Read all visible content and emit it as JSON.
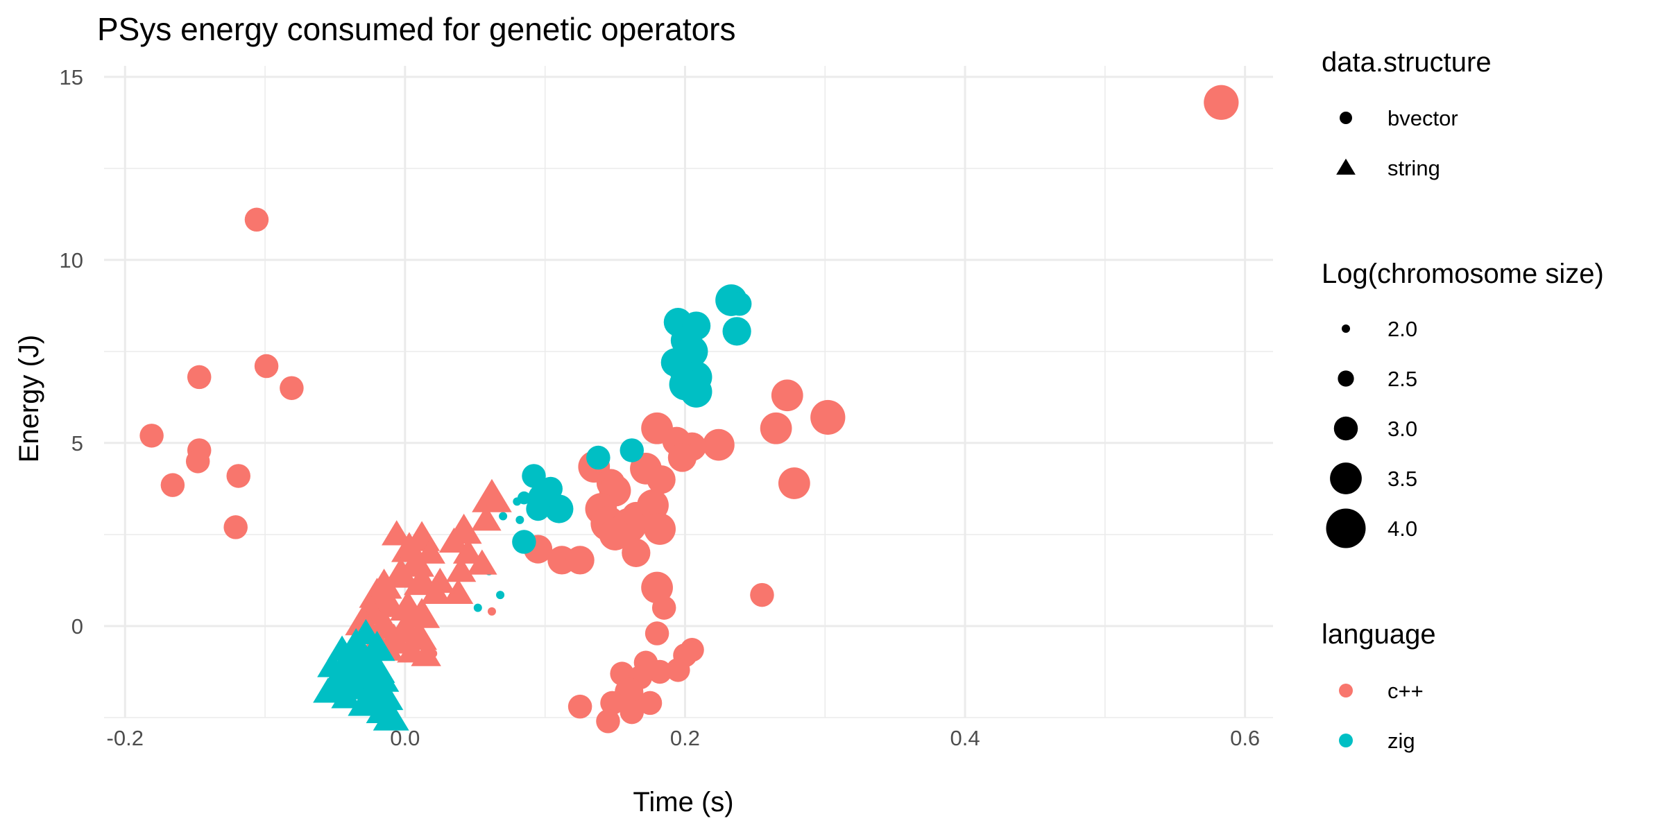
{
  "chart_data": {
    "type": "scatter",
    "title": "PSys energy consumed for genetic operators",
    "xlabel": "Time (s)",
    "ylabel": "Energy (J)",
    "xlim": [
      -0.215,
      0.62
    ],
    "ylim": [
      -2.5,
      15.3
    ],
    "x_ticks": [
      -0.2,
      0.0,
      0.2,
      0.4,
      0.6
    ],
    "x_tick_labels": [
      "-0.2",
      "0.0",
      "0.2",
      "0.4",
      "0.6"
    ],
    "y_ticks": [
      0,
      5,
      10,
      15
    ],
    "y_tick_labels": [
      "0",
      "5",
      "10",
      "15"
    ],
    "colors": {
      "c++": "#F8766D",
      "zig": "#00BFC4"
    },
    "legends": {
      "shape": {
        "title": "data.structure",
        "items": [
          {
            "label": "bvector",
            "shape": "circle"
          },
          {
            "label": "string",
            "shape": "triangle"
          }
        ]
      },
      "size": {
        "title": "Log(chromosome size)",
        "items": [
          {
            "label": "2.0",
            "value": 2.0
          },
          {
            "label": "2.5",
            "value": 2.5
          },
          {
            "label": "3.0",
            "value": 3.0
          },
          {
            "label": "3.5",
            "value": 3.5
          },
          {
            "label": "4.0",
            "value": 4.0
          }
        ]
      },
      "color": {
        "title": "language",
        "items": [
          {
            "label": "c++",
            "key": "c++"
          },
          {
            "label": "zig",
            "key": "zig"
          }
        ]
      }
    },
    "series": [
      {
        "language": "c++",
        "data_structure": "bvector",
        "points": [
          [
            0.583,
            14.3,
            3.7
          ],
          [
            -0.106,
            11.1,
            3.0
          ],
          [
            -0.099,
            7.1,
            3.0
          ],
          [
            -0.147,
            6.8,
            3.0
          ],
          [
            -0.081,
            6.5,
            3.0
          ],
          [
            -0.181,
            5.2,
            3.0
          ],
          [
            -0.147,
            4.8,
            3.0
          ],
          [
            -0.148,
            4.5,
            3.0
          ],
          [
            -0.166,
            3.85,
            3.0
          ],
          [
            -0.119,
            4.1,
            3.0
          ],
          [
            -0.121,
            2.7,
            3.0
          ],
          [
            0.302,
            5.7,
            3.7
          ],
          [
            0.273,
            6.3,
            3.5
          ],
          [
            0.265,
            5.4,
            3.5
          ],
          [
            0.278,
            3.9,
            3.5
          ],
          [
            0.255,
            0.85,
            3.0
          ],
          [
            0.224,
            4.95,
            3.5
          ],
          [
            0.205,
            4.9,
            3.3
          ],
          [
            0.18,
            5.4,
            3.5
          ],
          [
            0.194,
            5.05,
            3.3
          ],
          [
            0.198,
            4.6,
            3.3
          ],
          [
            0.172,
            4.3,
            3.5
          ],
          [
            0.183,
            4.0,
            3.3
          ],
          [
            0.135,
            4.35,
            3.5
          ],
          [
            0.147,
            3.9,
            3.3
          ],
          [
            0.15,
            3.7,
            3.5
          ],
          [
            0.14,
            3.2,
            3.5
          ],
          [
            0.177,
            3.3,
            3.5
          ],
          [
            0.165,
            3.0,
            3.3
          ],
          [
            0.145,
            2.8,
            3.7
          ],
          [
            0.16,
            2.75,
            3.7
          ],
          [
            0.182,
            2.65,
            3.5
          ],
          [
            0.15,
            2.5,
            3.5
          ],
          [
            0.165,
            2.0,
            3.3
          ],
          [
            0.095,
            2.1,
            3.3
          ],
          [
            0.112,
            1.8,
            3.3
          ],
          [
            0.125,
            1.8,
            3.3
          ],
          [
            0.18,
            1.05,
            3.5
          ],
          [
            0.185,
            0.5,
            3.0
          ],
          [
            0.18,
            -0.2,
            3.0
          ],
          [
            0.205,
            -0.65,
            3.0
          ],
          [
            0.2,
            -0.8,
            3.0
          ],
          [
            0.172,
            -1.0,
            3.0
          ],
          [
            0.195,
            -1.2,
            3.0
          ],
          [
            0.155,
            -1.3,
            3.0
          ],
          [
            0.182,
            -1.25,
            3.0
          ],
          [
            0.168,
            -1.4,
            3.0
          ],
          [
            0.16,
            -1.8,
            3.3
          ],
          [
            0.175,
            -2.1,
            3.0
          ],
          [
            0.148,
            -2.1,
            3.0
          ],
          [
            0.125,
            -2.2,
            3.0
          ],
          [
            0.162,
            -2.35,
            3.0
          ],
          [
            0.145,
            -2.6,
            3.0
          ],
          [
            0.062,
            0.4,
            2.0
          ],
          [
            0.02,
            -0.75,
            2.0
          ],
          [
            0.015,
            -0.45,
            2.0
          ]
        ]
      },
      {
        "language": "zig",
        "data_structure": "bvector",
        "points": [
          [
            0.233,
            8.9,
            3.5
          ],
          [
            0.239,
            8.8,
            3.0
          ],
          [
            0.237,
            8.05,
            3.3
          ],
          [
            0.195,
            8.3,
            3.3
          ],
          [
            0.208,
            8.2,
            3.3
          ],
          [
            0.2,
            7.8,
            3.3
          ],
          [
            0.205,
            7.5,
            3.5
          ],
          [
            0.193,
            7.2,
            3.3
          ],
          [
            0.2,
            7.0,
            3.5
          ],
          [
            0.208,
            6.8,
            3.5
          ],
          [
            0.2,
            6.6,
            3.5
          ],
          [
            0.208,
            6.4,
            3.5
          ],
          [
            0.138,
            4.6,
            3.0
          ],
          [
            0.162,
            4.8,
            3.0
          ],
          [
            0.092,
            4.1,
            3.0
          ],
          [
            0.104,
            3.75,
            3.0
          ],
          [
            0.098,
            3.5,
            3.3
          ],
          [
            0.11,
            3.2,
            3.3
          ],
          [
            0.085,
            3.5,
            2.3
          ],
          [
            0.095,
            3.2,
            3.0
          ],
          [
            0.08,
            3.4,
            2.0
          ],
          [
            0.07,
            3.0,
            2.0
          ],
          [
            0.082,
            2.9,
            2.0
          ],
          [
            0.085,
            2.3,
            3.0
          ],
          [
            0.06,
            1.5,
            2.0
          ],
          [
            0.068,
            0.85,
            2.0
          ],
          [
            0.052,
            0.5,
            2.0
          ]
        ]
      },
      {
        "language": "c++",
        "data_structure": "string",
        "points": [
          [
            0.062,
            3.5,
            3.5
          ],
          [
            0.058,
            2.9,
            3.0
          ],
          [
            0.042,
            2.6,
            3.3
          ],
          [
            0.035,
            2.3,
            3.0
          ],
          [
            0.045,
            2.0,
            3.0
          ],
          [
            0.055,
            1.7,
            3.0
          ],
          [
            0.04,
            1.5,
            3.0
          ],
          [
            0.038,
            0.9,
            3.0
          ],
          [
            0.025,
            1.2,
            3.0
          ],
          [
            0.012,
            2.4,
            3.3
          ],
          [
            0.003,
            2.1,
            3.3
          ],
          [
            -0.006,
            2.5,
            3.0
          ],
          [
            0.018,
            2.0,
            3.0
          ],
          [
            0.008,
            1.7,
            3.3
          ],
          [
            -0.003,
            1.4,
            3.3
          ],
          [
            0.012,
            1.2,
            3.3
          ],
          [
            0.022,
            0.9,
            3.0
          ],
          [
            -0.015,
            1.1,
            3.3
          ],
          [
            -0.02,
            0.85,
            3.3
          ],
          [
            -0.012,
            0.6,
            3.3
          ],
          [
            0.002,
            0.5,
            3.3
          ],
          [
            0.012,
            0.3,
            3.3
          ],
          [
            -0.025,
            0.4,
            3.3
          ],
          [
            -0.03,
            0.1,
            3.3
          ],
          [
            -0.015,
            0.0,
            3.3
          ],
          [
            0.0,
            -0.1,
            3.3
          ],
          [
            0.01,
            -0.3,
            3.3
          ],
          [
            -0.028,
            -0.2,
            3.0
          ],
          [
            -0.02,
            -0.5,
            3.3
          ],
          [
            -0.008,
            -0.4,
            3.3
          ],
          [
            0.005,
            -0.7,
            3.0
          ],
          [
            0.015,
            -0.8,
            3.0
          ],
          [
            -0.012,
            -0.65,
            3.0
          ]
        ]
      },
      {
        "language": "zig",
        "data_structure": "string",
        "points": [
          [
            -0.028,
            -0.2,
            3.0
          ],
          [
            -0.035,
            -0.45,
            3.0
          ],
          [
            -0.045,
            -0.65,
            3.0
          ],
          [
            -0.04,
            -0.9,
            3.3
          ],
          [
            -0.052,
            -1.1,
            3.0
          ],
          [
            -0.032,
            -1.05,
            3.0
          ],
          [
            -0.02,
            -1.2,
            3.3
          ],
          [
            -0.045,
            -1.35,
            3.3
          ],
          [
            -0.03,
            -1.4,
            3.3
          ],
          [
            -0.015,
            -1.5,
            3.0
          ],
          [
            -0.05,
            -1.6,
            3.3
          ],
          [
            -0.038,
            -1.65,
            3.3
          ],
          [
            -0.022,
            -1.8,
            3.3
          ],
          [
            -0.055,
            -1.8,
            3.0
          ],
          [
            -0.042,
            -1.95,
            3.0
          ],
          [
            -0.012,
            -2.0,
            3.0
          ],
          [
            -0.028,
            -2.1,
            3.3
          ],
          [
            -0.015,
            -2.3,
            3.3
          ],
          [
            -0.01,
            -2.5,
            3.3
          ],
          [
            -0.02,
            -0.6,
            3.3
          ],
          [
            -0.03,
            -0.85,
            3.3
          ]
        ]
      }
    ]
  }
}
